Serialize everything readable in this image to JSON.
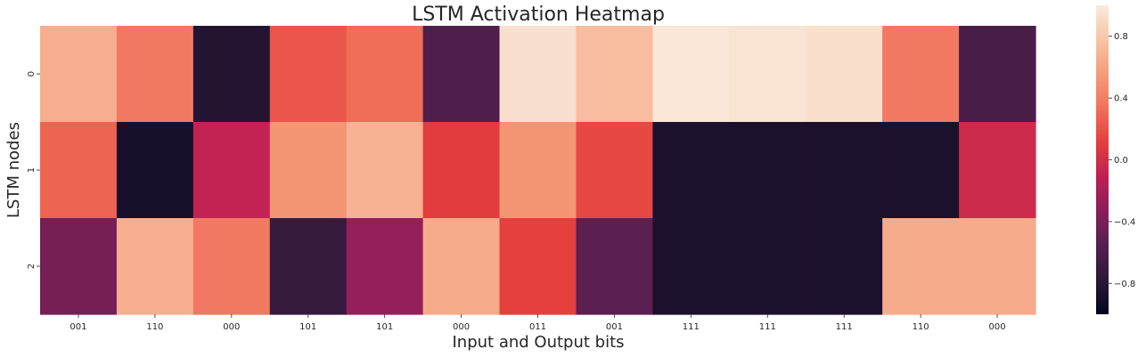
{
  "chart_data": {
    "type": "heatmap",
    "title": "LSTM Activation Heatmap",
    "xlabel": "Input and Output bits",
    "ylabel": "LSTM nodes",
    "x_categories": [
      "001",
      "110",
      "000",
      "101",
      "101",
      "000",
      "011",
      "001",
      "111",
      "111",
      "111",
      "110",
      "000"
    ],
    "y_categories": [
      "0",
      "1",
      "2"
    ],
    "values": [
      [
        0.66,
        0.38,
        -0.82,
        0.22,
        0.32,
        -0.58,
        0.94,
        0.74,
        0.98,
        0.96,
        0.93,
        0.38,
        -0.62
      ],
      [
        0.28,
        -0.88,
        -0.08,
        0.52,
        0.68,
        0.1,
        0.52,
        0.16,
        -0.86,
        -0.86,
        -0.86,
        -0.86,
        -0.02
      ],
      [
        -0.42,
        0.66,
        0.38,
        -0.72,
        -0.28,
        0.64,
        0.12,
        -0.52,
        -0.86,
        -0.86,
        -0.86,
        0.64,
        0.64
      ]
    ],
    "colorbar": {
      "range": [
        -1.0,
        1.0
      ],
      "ticks": [
        0.8,
        0.4,
        0.0,
        -0.4,
        -0.8
      ],
      "tick_labels": [
        "0.8",
        "0.4",
        "0.0",
        "−0.4",
        "−0.8"
      ]
    },
    "colormap": {
      "name": "rocket",
      "stops": [
        "#03051a",
        "#2a1838",
        "#541f4f",
        "#881f5a",
        "#bd1f56",
        "#e43d3d",
        "#f1705a",
        "#f59c79",
        "#f7c4a6",
        "#faebdd"
      ]
    },
    "grid": false,
    "legend": "none"
  }
}
